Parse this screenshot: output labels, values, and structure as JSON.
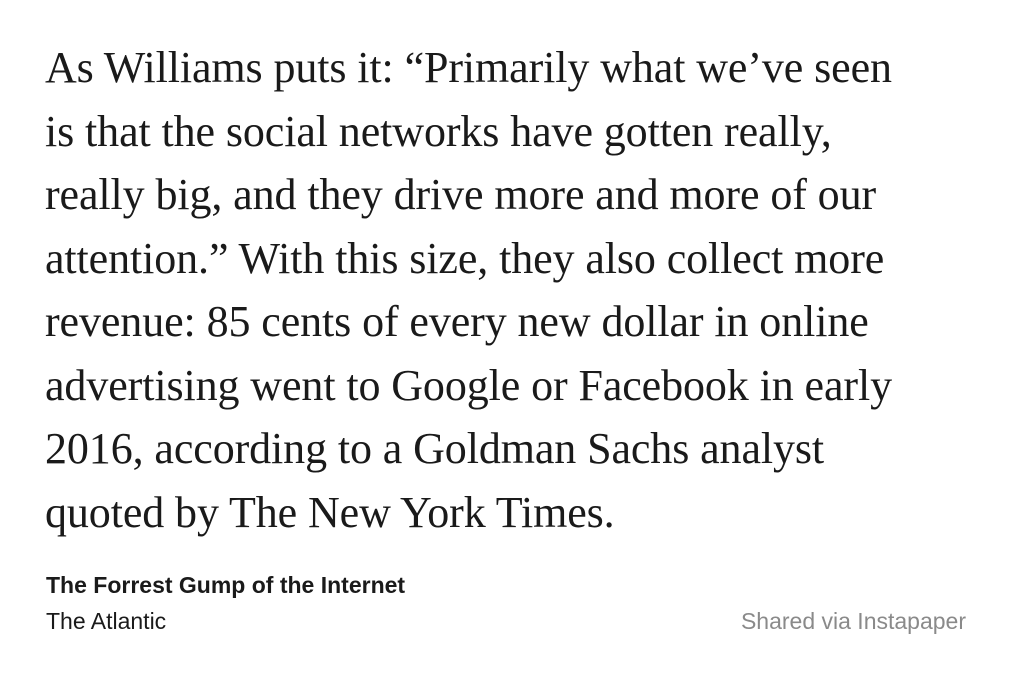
{
  "quote": {
    "lines": [
      "As Williams puts it: “Primarily what we’ve seen",
      "is that the social networks have gotten really,",
      "really big, and they drive more and more of our",
      "attention.” With this size, they also collect more",
      "revenue: 85 cents of every new dollar in online",
      "advertising went to Google or Facebook in early",
      "2016, according to a Goldman Sachs analyst",
      "quoted by The New York Times."
    ]
  },
  "article": {
    "title": "The Forrest Gump of the Internet",
    "source": "The Atlantic"
  },
  "footer": {
    "shared_via": "Shared via Instapaper"
  }
}
